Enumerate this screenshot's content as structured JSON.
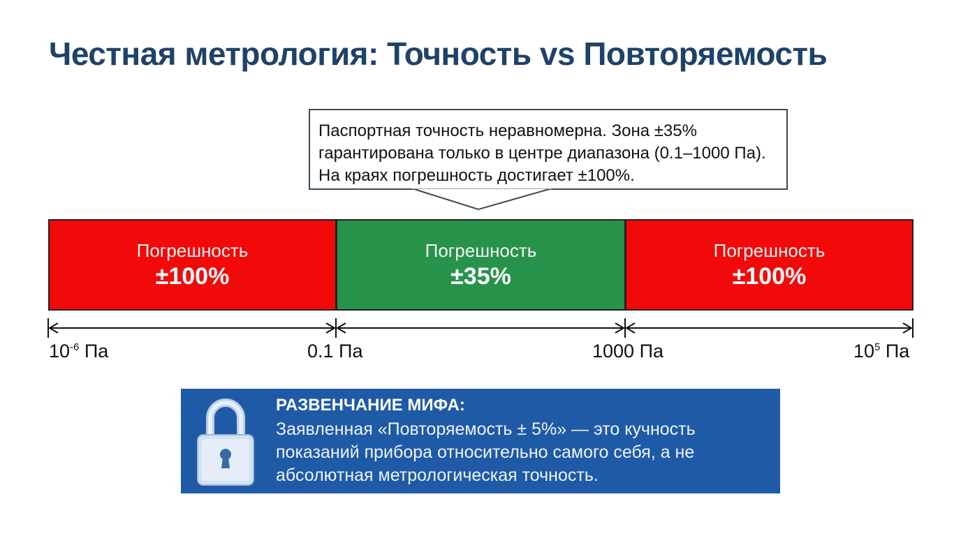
{
  "title": "Честная метрология: Точность vs Повторяемость",
  "callout": {
    "text": "Паспортная точность неравномерна. Зона ±35% гарантирована только в центре диапазона (0.1–1000 Па). На краях погрешность достигает ±100%."
  },
  "bands": [
    {
      "label": "Погрешность",
      "value": "±100%",
      "color": "#f20a0a"
    },
    {
      "label": "Погрешность",
      "value": "±35%",
      "color": "#27934a"
    },
    {
      "label": "Погрешность",
      "value": "±100%",
      "color": "#f20a0a"
    }
  ],
  "axis": {
    "ticks": [
      {
        "base": "10",
        "exp": "-6",
        "unit": " Па"
      },
      {
        "base": "0.1",
        "exp": "",
        "unit": " Па"
      },
      {
        "base": "1000",
        "exp": "",
        "unit": " Па"
      },
      {
        "base": "10",
        "exp": "5",
        "unit": " Па"
      }
    ]
  },
  "myth": {
    "heading": "РАЗВЕНЧАНИЕ МИФА:",
    "text": "Заявленная «Повторяемость ± 5%» — это кучность показаний прибора относительно самого себя, а не абсолютная метрологическая точность.",
    "icon": "padlock-icon",
    "color": "#1f5aa6"
  }
}
